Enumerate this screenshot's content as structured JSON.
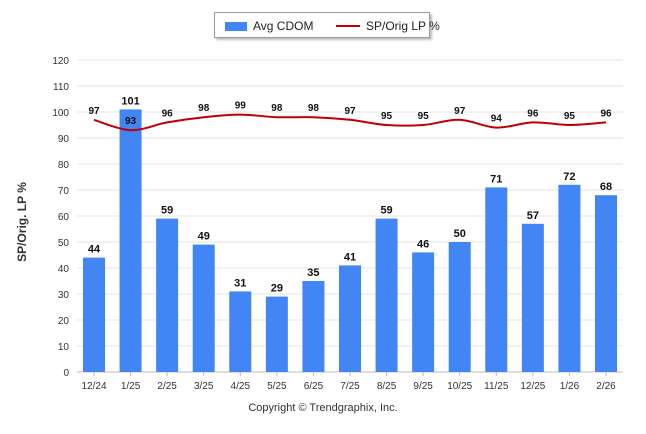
{
  "legend": {
    "bar_label": "Avg CDOM",
    "line_label": "SP/Orig LP %"
  },
  "footer": "Copyright © Trendgraphix, Inc.",
  "colors": {
    "bar": "#4285f4",
    "line": "#c00000",
    "grid": "#e6e6e6"
  },
  "chart_data": {
    "type": "bar",
    "title": "",
    "xlabel": "",
    "ylabel": "SP/Orig. LP %",
    "ylim": [
      0,
      120
    ],
    "yticks": [
      0,
      10,
      20,
      30,
      40,
      50,
      60,
      70,
      80,
      90,
      100,
      110,
      120
    ],
    "categories": [
      "12/24",
      "1/25",
      "2/25",
      "3/25",
      "4/25",
      "5/25",
      "6/25",
      "7/25",
      "8/25",
      "9/25",
      "10/25",
      "11/25",
      "12/25",
      "1/26",
      "2/26"
    ],
    "series": [
      {
        "name": "Avg CDOM",
        "kind": "bar",
        "values": [
          44,
          101,
          59,
          49,
          31,
          29,
          35,
          41,
          59,
          46,
          50,
          71,
          57,
          72,
          68
        ]
      },
      {
        "name": "SP/Orig LP %",
        "kind": "line",
        "values": [
          97,
          93,
          96,
          98,
          99,
          98,
          98,
          97,
          95,
          95,
          97,
          94,
          96,
          95,
          96
        ]
      }
    ]
  }
}
